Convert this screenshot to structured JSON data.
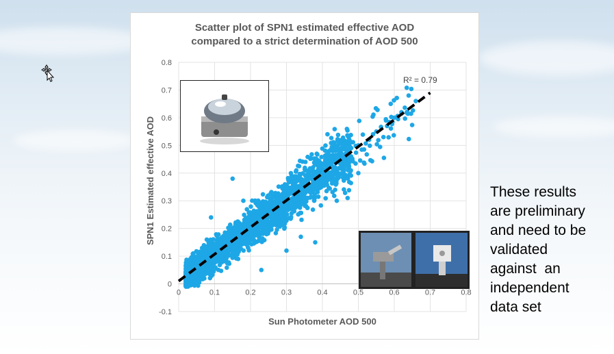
{
  "chart_data": {
    "type": "scatter",
    "title_lines": [
      "Scatter plot of SPN1 estimated effective AOD",
      "compared to a strict determination of AOD 500"
    ],
    "xlabel": "Sun Photometer AOD 500",
    "ylabel": "SPN1 Estimated effective AOD",
    "xlim": [
      0,
      0.8
    ],
    "ylim": [
      -0.1,
      0.8
    ],
    "x_ticks": [
      "0",
      "0.1",
      "0.2",
      "0.3",
      "0.4",
      "0.5",
      "0.6",
      "0.7",
      "0.8"
    ],
    "y_ticks": [
      "-0.1",
      "0",
      "0.1",
      "0.2",
      "0.3",
      "0.4",
      "0.5",
      "0.6",
      "0.7",
      "0.8"
    ],
    "grid": true,
    "point_color": "#1ea7e6",
    "trendline": {
      "x": [
        0,
        0.7
      ],
      "y": [
        0.01,
        0.69
      ],
      "style": "dashed",
      "color": "#000000"
    },
    "r_squared_label": "R² = 0.79",
    "sample_points": [
      [
        0.05,
        0.02
      ],
      [
        0.08,
        0.06
      ],
      [
        0.1,
        0.12
      ],
      [
        0.12,
        0.1
      ],
      [
        0.15,
        0.16
      ],
      [
        0.18,
        0.15
      ],
      [
        0.2,
        0.2
      ],
      [
        0.22,
        0.22
      ],
      [
        0.25,
        0.25
      ],
      [
        0.28,
        0.28
      ],
      [
        0.3,
        0.3
      ],
      [
        0.33,
        0.31
      ],
      [
        0.35,
        0.34
      ],
      [
        0.38,
        0.36
      ],
      [
        0.4,
        0.4
      ],
      [
        0.43,
        0.44
      ],
      [
        0.45,
        0.45
      ],
      [
        0.48,
        0.46
      ],
      [
        0.5,
        0.5
      ],
      [
        0.53,
        0.52
      ],
      [
        0.55,
        0.55
      ],
      [
        0.57,
        0.53
      ],
      [
        0.6,
        0.6
      ],
      [
        0.62,
        0.62
      ],
      [
        0.64,
        0.68
      ],
      [
        0.66,
        0.66
      ],
      [
        0.58,
        0.57
      ],
      [
        0.59,
        0.65
      ],
      [
        0.5,
        0.4
      ],
      [
        0.47,
        0.31
      ],
      [
        0.38,
        0.15
      ],
      [
        0.3,
        0.12
      ],
      [
        0.23,
        0.05
      ],
      [
        0.15,
        0.38
      ],
      [
        0.09,
        0.24
      ],
      [
        0.18,
        0.3
      ],
      [
        0.34,
        0.17
      ],
      [
        0.44,
        0.3
      ]
    ]
  },
  "side_text": [
    "These results",
    "are preliminary",
    "and need to be",
    "validated",
    "against  an",
    "independent",
    "data set"
  ]
}
